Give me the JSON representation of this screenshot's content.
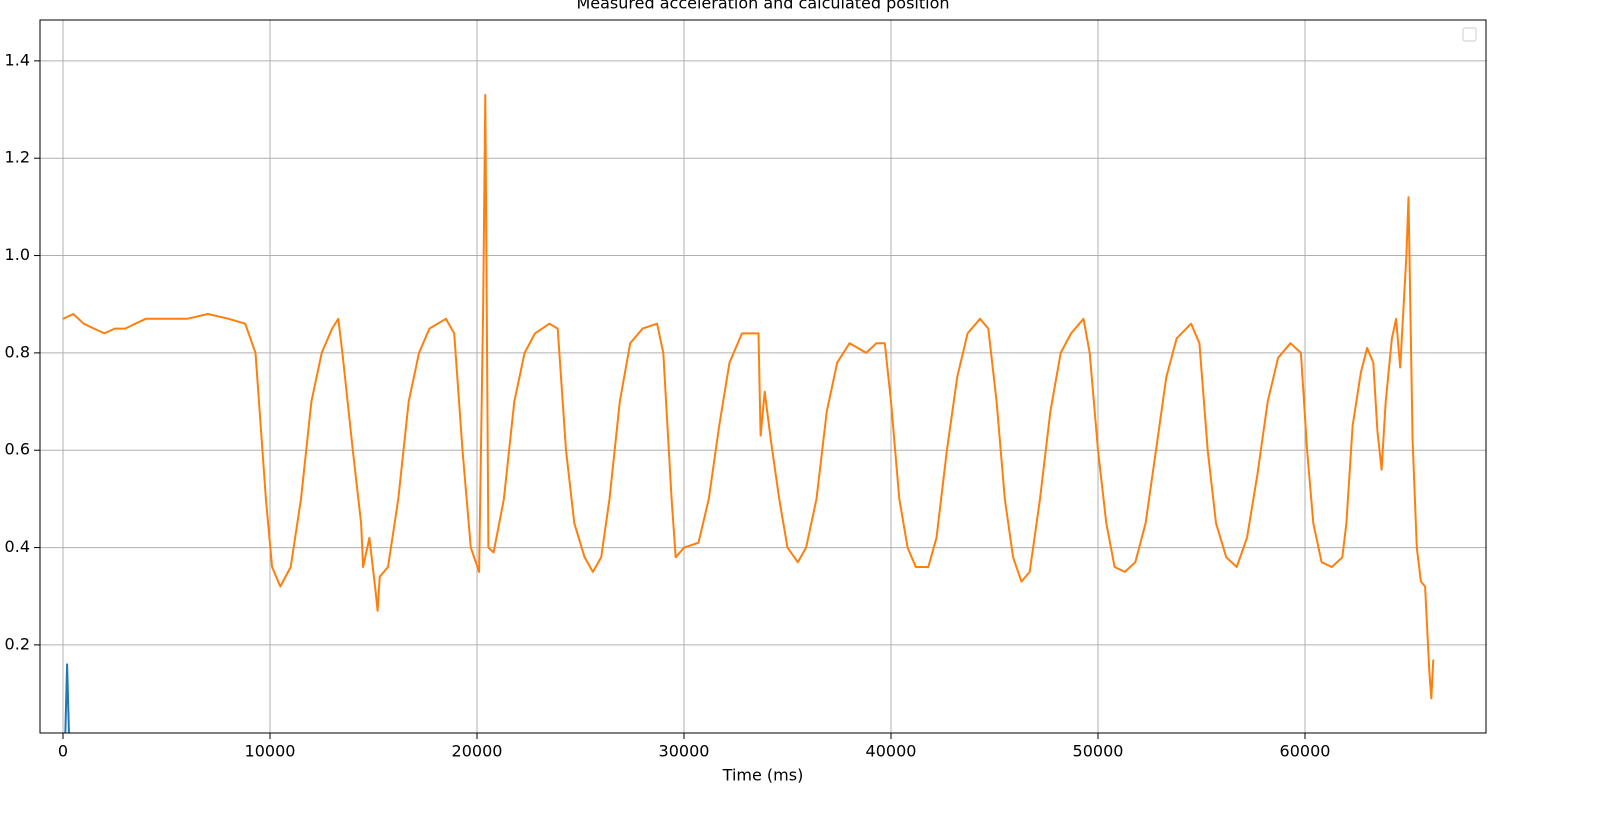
{
  "chart_data": {
    "type": "line",
    "title": "Measured acceleration and calculated position",
    "xlabel": "Time (ms)",
    "xlim": [
      -1111,
      68744
    ],
    "ylim": [
      0.019,
      1.484
    ],
    "xticks": [
      0,
      10000,
      20000,
      30000,
      40000,
      50000,
      60000
    ],
    "yticks": [
      0.2,
      0.4,
      0.6,
      0.8,
      {
        "value": 1,
        "label": "1.0"
      },
      1.2,
      1.4
    ],
    "grid": true,
    "legend": "upper right",
    "series": [
      {
        "color": "#1f77b4",
        "x": [
          100,
          200,
          300
        ],
        "values": [
          0.0,
          0.16,
          0.0
        ]
      },
      {
        "color": "#ff7f0e",
        "x": [
          0,
          500,
          1000,
          1500,
          2000,
          2500,
          3000,
          3500,
          4000,
          5000,
          6000,
          7000,
          8000,
          8800,
          9300,
          9800,
          10100,
          10500,
          11000,
          11500,
          12000,
          12500,
          13000,
          13300,
          13500,
          14000,
          14400,
          14500,
          14800,
          15100,
          15200,
          15300,
          15700,
          16200,
          16700,
          17200,
          17700,
          18500,
          18900,
          19300,
          19700,
          20100,
          20300,
          20400,
          20550,
          20800,
          21300,
          21800,
          22300,
          22800,
          23500,
          23900,
          24300,
          24700,
          25200,
          25600,
          26000,
          26400,
          26900,
          27400,
          28000,
          28700,
          29000,
          29400,
          29600,
          30000,
          30700,
          31200,
          31700,
          32200,
          32800,
          33600,
          33700,
          33900,
          34200,
          34600,
          35000,
          35500,
          35900,
          36400,
          36900,
          37400,
          38000,
          38800,
          39300,
          39700,
          40000,
          40400,
          40800,
          41200,
          41800,
          42200,
          42700,
          43200,
          43700,
          44300,
          44700,
          45100,
          45500,
          45900,
          46300,
          46700,
          47200,
          47700,
          48200,
          48700,
          49300,
          49600,
          50000,
          50400,
          50800,
          51300,
          51800,
          52300,
          52800,
          53300,
          53800,
          54500,
          54900,
          55300,
          55700,
          56200,
          56700,
          57200,
          57700,
          58200,
          58700,
          59300,
          59800,
          60100,
          60400,
          60800,
          61300,
          61800,
          62000,
          62300,
          62700,
          63000,
          63300,
          63500,
          63700,
          63900,
          64200,
          64400,
          64600,
          64900,
          65000,
          65200,
          65400,
          65600,
          65800,
          66000,
          66100,
          66200
        ],
        "values": [
          0.87,
          0.88,
          0.86,
          0.85,
          0.84,
          0.85,
          0.85,
          0.86,
          0.87,
          0.87,
          0.87,
          0.88,
          0.87,
          0.86,
          0.8,
          0.5,
          0.36,
          0.32,
          0.36,
          0.5,
          0.7,
          0.8,
          0.85,
          0.87,
          0.8,
          0.6,
          0.45,
          0.36,
          0.42,
          0.31,
          0.27,
          0.34,
          0.36,
          0.5,
          0.7,
          0.8,
          0.85,
          0.87,
          0.84,
          0.6,
          0.4,
          0.35,
          0.9,
          1.33,
          0.4,
          0.39,
          0.5,
          0.7,
          0.8,
          0.84,
          0.86,
          0.85,
          0.6,
          0.45,
          0.38,
          0.35,
          0.38,
          0.5,
          0.7,
          0.82,
          0.85,
          0.86,
          0.8,
          0.5,
          0.38,
          0.4,
          0.41,
          0.5,
          0.65,
          0.78,
          0.84,
          0.84,
          0.63,
          0.72,
          0.62,
          0.5,
          0.4,
          0.37,
          0.4,
          0.5,
          0.68,
          0.78,
          0.82,
          0.8,
          0.82,
          0.82,
          0.7,
          0.5,
          0.4,
          0.36,
          0.36,
          0.42,
          0.6,
          0.75,
          0.84,
          0.87,
          0.85,
          0.7,
          0.5,
          0.38,
          0.33,
          0.35,
          0.5,
          0.68,
          0.8,
          0.84,
          0.87,
          0.8,
          0.6,
          0.45,
          0.36,
          0.35,
          0.37,
          0.45,
          0.6,
          0.75,
          0.83,
          0.86,
          0.82,
          0.6,
          0.45,
          0.38,
          0.36,
          0.42,
          0.55,
          0.7,
          0.79,
          0.82,
          0.8,
          0.6,
          0.45,
          0.37,
          0.36,
          0.38,
          0.45,
          0.65,
          0.76,
          0.81,
          0.78,
          0.64,
          0.56,
          0.7,
          0.83,
          0.87,
          0.77,
          1.0,
          1.12,
          0.62,
          0.4,
          0.33,
          0.32,
          0.15,
          0.09,
          0.17
        ]
      }
    ]
  }
}
